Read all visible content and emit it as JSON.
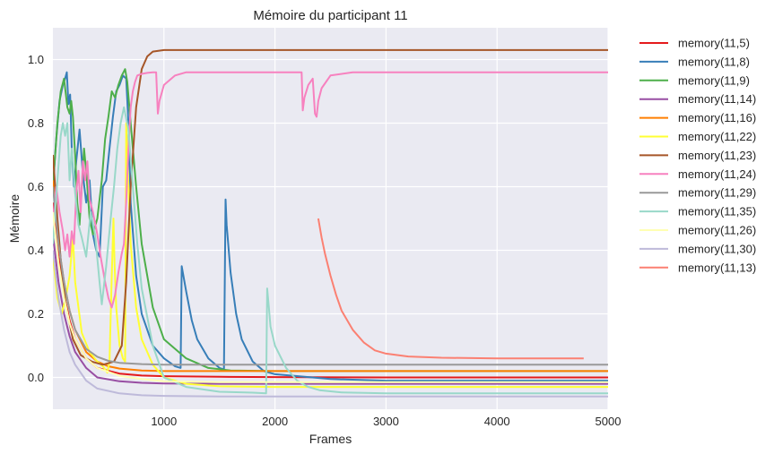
{
  "chart_data": {
    "type": "line",
    "title": "Mémoire du participant 11",
    "xlabel": "Frames",
    "ylabel": "Mémoire",
    "xlim": [
      0,
      5000
    ],
    "ylim": [
      -0.1,
      1.1
    ],
    "xticks": [
      "1000",
      "2000",
      "3000",
      "4000",
      "5000"
    ],
    "xtick_values": [
      1000,
      2000,
      3000,
      4000,
      5000
    ],
    "yticks": [
      "0.0",
      "0.2",
      "0.4",
      "0.6",
      "0.8",
      "1.0"
    ],
    "ytick_values": [
      0.0,
      0.2,
      0.4,
      0.6,
      0.8,
      1.0
    ],
    "grid": true,
    "legend_position": "outside-right",
    "series": [
      {
        "name": "memory(11,5)",
        "color": "#e41a1c",
        "x": [
          0,
          50,
          100,
          150,
          200,
          300,
          400,
          600,
          800,
          1000,
          1500,
          2000,
          3000,
          5000
        ],
        "y": [
          0.55,
          0.38,
          0.26,
          0.18,
          0.12,
          0.06,
          0.03,
          0.012,
          0.006,
          0.004,
          0.002,
          0.001,
          0.0,
          0.0
        ]
      },
      {
        "name": "memory(11,8)",
        "color": "#377eb8",
        "x": [
          0,
          30,
          60,
          90,
          110,
          125,
          140,
          155,
          170,
          190,
          210,
          240,
          270,
          300,
          330,
          360,
          390,
          420,
          450,
          480,
          510,
          540,
          570,
          600,
          630,
          660,
          680,
          700,
          750,
          800,
          900,
          1000,
          1100,
          1150,
          1160,
          1200,
          1250,
          1300,
          1400,
          1500,
          1540,
          1555,
          1565,
          1600,
          1650,
          1700,
          1800,
          1900,
          2000,
          2500,
          3000,
          5000
        ],
        "y": [
          0.6,
          0.75,
          0.87,
          0.92,
          0.94,
          0.96,
          0.86,
          0.89,
          0.72,
          0.6,
          0.68,
          0.78,
          0.64,
          0.55,
          0.62,
          0.45,
          0.4,
          0.38,
          0.6,
          0.62,
          0.72,
          0.82,
          0.9,
          0.92,
          0.95,
          0.94,
          0.8,
          0.55,
          0.32,
          0.2,
          0.1,
          0.06,
          0.035,
          0.03,
          0.35,
          0.27,
          0.18,
          0.12,
          0.06,
          0.03,
          0.025,
          0.56,
          0.48,
          0.33,
          0.2,
          0.12,
          0.05,
          0.02,
          0.01,
          -0.005,
          -0.01,
          -0.01
        ]
      },
      {
        "name": "memory(11,9)",
        "color": "#4daf4a",
        "x": [
          0,
          40,
          70,
          100,
          130,
          150,
          165,
          180,
          200,
          220,
          240,
          260,
          280,
          300,
          330,
          360,
          400,
          440,
          470,
          500,
          530,
          560,
          590,
          620,
          650,
          670,
          700,
          750,
          800,
          900,
          1000,
          1200,
          1400,
          1600,
          2000,
          3000,
          5000
        ],
        "y": [
          0.6,
          0.8,
          0.9,
          0.94,
          0.85,
          0.83,
          0.87,
          0.82,
          0.7,
          0.55,
          0.48,
          0.6,
          0.72,
          0.65,
          0.5,
          0.45,
          0.5,
          0.62,
          0.75,
          0.82,
          0.9,
          0.88,
          0.92,
          0.95,
          0.97,
          0.93,
          0.8,
          0.6,
          0.42,
          0.22,
          0.12,
          0.06,
          0.03,
          0.022,
          0.02,
          0.02,
          0.02
        ]
      },
      {
        "name": "memory(11,14)",
        "color": "#984ea3",
        "x": [
          0,
          50,
          100,
          150,
          200,
          300,
          400,
          600,
          800,
          1000,
          1500,
          2000,
          3000,
          5000
        ],
        "y": [
          0.45,
          0.3,
          0.2,
          0.13,
          0.08,
          0.03,
          0.0,
          -0.012,
          -0.017,
          -0.019,
          -0.02,
          -0.02,
          -0.02,
          -0.02
        ]
      },
      {
        "name": "memory(11,16)",
        "color": "#ff7f00",
        "x": [
          0,
          50,
          100,
          150,
          200,
          300,
          400,
          500,
          600,
          800,
          1000,
          1500,
          2000,
          3000,
          5000
        ],
        "y": [
          0.62,
          0.42,
          0.3,
          0.21,
          0.15,
          0.08,
          0.05,
          0.035,
          0.028,
          0.022,
          0.02,
          0.02,
          0.02,
          0.02,
          0.02
        ]
      },
      {
        "name": "memory(11,22)",
        "color": "#ffff33",
        "x": [
          0,
          40,
          80,
          120,
          150,
          180,
          200,
          260,
          330,
          400,
          450,
          480,
          490,
          510,
          530,
          545,
          555,
          570,
          600,
          630,
          650,
          660,
          680,
          700,
          750,
          800,
          900,
          1000,
          1200,
          1500,
          2000,
          3000,
          5000
        ],
        "y": [
          0.38,
          0.25,
          0.2,
          0.26,
          0.32,
          0.44,
          0.3,
          0.14,
          0.08,
          0.05,
          0.035,
          0.02,
          0.015,
          0.05,
          0.32,
          0.5,
          0.36,
          0.22,
          0.1,
          0.06,
          0.05,
          0.8,
          0.6,
          0.42,
          0.22,
          0.12,
          0.04,
          0.0,
          -0.02,
          -0.028,
          -0.03,
          -0.03,
          -0.03
        ]
      },
      {
        "name": "memory(11,23)",
        "color": "#a65628",
        "x": [
          0,
          40,
          80,
          120,
          180,
          250,
          350,
          450,
          550,
          620,
          660,
          700,
          750,
          800,
          850,
          900,
          1000,
          1200,
          1500,
          2000,
          3000,
          4000,
          5000
        ],
        "y": [
          0.7,
          0.5,
          0.33,
          0.22,
          0.12,
          0.07,
          0.05,
          0.04,
          0.05,
          0.1,
          0.3,
          0.6,
          0.85,
          0.97,
          1.01,
          1.025,
          1.03,
          1.03,
          1.03,
          1.03,
          1.03,
          1.03,
          1.03
        ]
      },
      {
        "name": "memory(11,24)",
        "color": "#f781bf",
        "x": [
          0,
          30,
          60,
          90,
          110,
          130,
          150,
          170,
          190,
          210,
          230,
          250,
          270,
          290,
          310,
          330,
          360,
          400,
          430,
          470,
          500,
          530,
          560,
          590,
          620,
          640,
          660,
          680,
          700,
          720,
          740,
          760,
          800,
          850,
          900,
          930,
          945,
          960,
          1000,
          1100,
          1200,
          1500,
          1800,
          2000,
          2200,
          2240,
          2250,
          2265,
          2300,
          2340,
          2360,
          2375,
          2390,
          2420,
          2500,
          2700,
          3000,
          4000,
          5000
        ],
        "y": [
          0.5,
          0.6,
          0.52,
          0.46,
          0.4,
          0.45,
          0.38,
          0.46,
          0.42,
          0.58,
          0.65,
          0.52,
          0.68,
          0.62,
          0.68,
          0.56,
          0.52,
          0.45,
          0.38,
          0.3,
          0.25,
          0.22,
          0.26,
          0.33,
          0.39,
          0.42,
          0.55,
          0.72,
          0.85,
          0.9,
          0.93,
          0.95,
          0.955,
          0.958,
          0.96,
          0.96,
          0.83,
          0.87,
          0.92,
          0.95,
          0.96,
          0.96,
          0.96,
          0.96,
          0.96,
          0.96,
          0.84,
          0.88,
          0.92,
          0.94,
          0.83,
          0.82,
          0.87,
          0.91,
          0.95,
          0.96,
          0.96,
          0.96,
          0.96
        ]
      },
      {
        "name": "memory(11,29)",
        "color": "#999999",
        "x": [
          0,
          50,
          100,
          150,
          200,
          300,
          400,
          500,
          600,
          800,
          1000,
          1500,
          2000,
          3000,
          5000
        ],
        "y": [
          0.6,
          0.42,
          0.3,
          0.21,
          0.15,
          0.09,
          0.065,
          0.052,
          0.046,
          0.042,
          0.04,
          0.04,
          0.04,
          0.04,
          0.04
        ]
      },
      {
        "name": "memory(11,35)",
        "color": "#99d8c9",
        "x": [
          0,
          40,
          70,
          90,
          110,
          130,
          150,
          170,
          200,
          230,
          260,
          300,
          340,
          380,
          420,
          440,
          480,
          520,
          550,
          580,
          610,
          640,
          680,
          720,
          760,
          800,
          900,
          1000,
          1200,
          1500,
          1800,
          1920,
          1930,
          1945,
          1960,
          2000,
          2100,
          2200,
          2300,
          2400,
          2600,
          3000,
          4000,
          5000
        ],
        "y": [
          0.42,
          0.62,
          0.76,
          0.8,
          0.76,
          0.8,
          0.62,
          0.72,
          0.58,
          0.48,
          0.44,
          0.38,
          0.52,
          0.45,
          0.3,
          0.23,
          0.35,
          0.5,
          0.6,
          0.72,
          0.8,
          0.85,
          0.78,
          0.6,
          0.42,
          0.28,
          0.1,
          0.0,
          -0.03,
          -0.045,
          -0.048,
          -0.05,
          0.28,
          0.22,
          0.16,
          0.1,
          0.03,
          -0.01,
          -0.03,
          -0.04,
          -0.047,
          -0.05,
          -0.05,
          -0.05
        ]
      },
      {
        "name": "memory(11,26)",
        "color": "#ffffb3",
        "x": [
          0,
          50,
          100,
          150,
          200,
          300,
          400,
          600,
          800,
          1000,
          1500,
          2000,
          3000,
          5000
        ],
        "y": [
          0.52,
          0.36,
          0.25,
          0.17,
          0.12,
          0.06,
          0.03,
          0.005,
          -0.005,
          -0.012,
          -0.015,
          -0.015,
          -0.015,
          -0.015
        ]
      },
      {
        "name": "memory(11,30)",
        "color": "#bebada",
        "x": [
          0,
          50,
          100,
          150,
          200,
          300,
          400,
          600,
          800,
          1000,
          1500,
          2000,
          3000,
          5000
        ],
        "y": [
          0.4,
          0.25,
          0.15,
          0.08,
          0.04,
          -0.01,
          -0.035,
          -0.05,
          -0.056,
          -0.058,
          -0.06,
          -0.06,
          -0.06,
          -0.06
        ]
      },
      {
        "name": "memory(11,13)",
        "color": "#fb8072",
        "x": [
          2390,
          2420,
          2450,
          2500,
          2550,
          2600,
          2700,
          2800,
          2900,
          3000,
          3200,
          3500,
          4000,
          4500,
          4780
        ],
        "y": [
          0.5,
          0.44,
          0.39,
          0.32,
          0.26,
          0.21,
          0.15,
          0.11,
          0.085,
          0.075,
          0.066,
          0.062,
          0.06,
          0.06,
          0.06
        ]
      }
    ]
  }
}
